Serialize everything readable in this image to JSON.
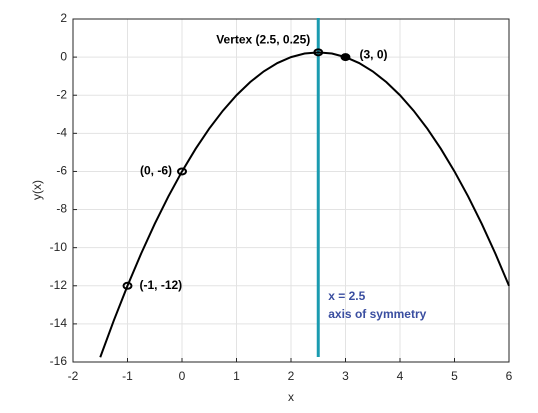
{
  "chart_data": {
    "type": "line",
    "xlabel": "x",
    "ylabel": "y(x)",
    "xlim": [
      -2,
      6
    ],
    "xticks": [
      -2,
      -1,
      0,
      1,
      2,
      3,
      4,
      5,
      6
    ],
    "ylim": [
      -16,
      2
    ],
    "yticks": [
      -16,
      -14,
      -12,
      -10,
      -8,
      -6,
      -4,
      -2,
      0,
      2
    ],
    "grid": true,
    "series": [
      {
        "color": "#000000",
        "x": [
          -1.5,
          -1.25,
          -1,
          -0.75,
          -0.5,
          -0.25,
          0,
          0.25,
          0.5,
          0.75,
          1,
          1.25,
          1.5,
          1.75,
          2,
          2.25,
          2.5,
          2.75,
          3,
          3.25,
          3.5,
          3.75,
          4,
          4.25,
          4.5,
          4.75,
          5,
          5.25,
          5.5,
          5.75,
          6
        ],
        "values": [
          -15.75,
          -13.8125,
          -12,
          -10.3125,
          -8.75,
          -7.3125,
          -6,
          -4.8125,
          -3.75,
          -2.8125,
          -2,
          -1.3125,
          -0.75,
          -0.3125,
          0,
          0.1875,
          0.25,
          0.1875,
          0,
          -0.3125,
          -0.75,
          -1.3125,
          -2,
          -2.8125,
          -3.75,
          -4.8125,
          -6,
          -7.3125,
          -8.75,
          -10.3125,
          -12
        ]
      }
    ],
    "points": {
      "color": "#000000",
      "x": [
        -1,
        0,
        2.5,
        3
      ],
      "values": [
        -12,
        -6,
        0.25,
        0
      ],
      "labels": [
        "(-1, -12)",
        "(0, -6)",
        "Vertex (2.5, 0.25)",
        "(3, 0)"
      ]
    },
    "vline": {
      "x": 2.5,
      "color": "#1a9bb0",
      "label_color": "#3a4ea0",
      "labels": [
        "x = 2.5",
        "axis of symmetry"
      ]
    }
  }
}
